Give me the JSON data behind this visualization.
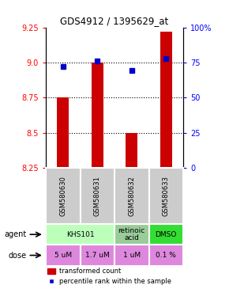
{
  "title": "GDS4912 / 1395629_at",
  "samples": [
    "GSM580630",
    "GSM580631",
    "GSM580632",
    "GSM580633"
  ],
  "bar_values": [
    8.75,
    9.0,
    8.5,
    9.22
  ],
  "bar_bottom": 8.25,
  "percentile_values": [
    0.72,
    0.76,
    0.695,
    0.78
  ],
  "ylim_left": [
    8.25,
    9.25
  ],
  "yticks_left": [
    8.25,
    8.5,
    8.75,
    9.0,
    9.25
  ],
  "ytick_labels_right": [
    "0",
    "25",
    "50",
    "75",
    "100%"
  ],
  "bar_color": "#cc0000",
  "percentile_color": "#0000cc",
  "agent_info": [
    {
      "span": [
        0,
        2
      ],
      "text": "KHS101",
      "color": "#bbffbb"
    },
    {
      "span": [
        2,
        3
      ],
      "text": "retinoic\nacid",
      "color": "#99cc99"
    },
    {
      "span": [
        3,
        4
      ],
      "text": "DMSO",
      "color": "#33dd33"
    }
  ],
  "dose_labels": [
    "5 uM",
    "1.7 uM",
    "1 uM",
    "0.1 %"
  ],
  "dose_color": "#dd88dd",
  "sample_bg": "#cccccc",
  "legend_bar_color": "#cc0000",
  "legend_dot_color": "#0000cc"
}
